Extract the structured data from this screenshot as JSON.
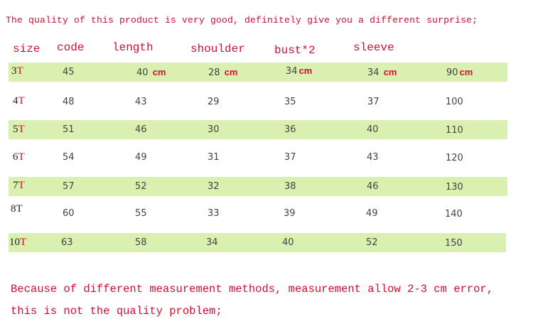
{
  "top_note": "The quality of this product is very good, definitely give you a different surprise;",
  "headers": {
    "size": "size",
    "code": "code",
    "length": "length",
    "shoulder": "shoulder",
    "bust": "bust*2",
    "sleeve": "sleeve"
  },
  "unit_label": "cm",
  "rows": [
    {
      "size_num": "3",
      "size_t": "T",
      "code": "45",
      "length": "40",
      "shoulder": "28",
      "bust": "34",
      "sleeve": "34",
      "height": "90"
    },
    {
      "size_num": "4",
      "size_t": "T",
      "code": "48",
      "length": "43",
      "shoulder": "29",
      "bust": "35",
      "sleeve": "37",
      "height": "100"
    },
    {
      "size_num": "5",
      "size_t": "T",
      "code": "51",
      "length": "46",
      "shoulder": "30",
      "bust": "36",
      "sleeve": "40",
      "height": "110"
    },
    {
      "size_num": "6",
      "size_t": "T",
      "code": "54",
      "length": "49",
      "shoulder": "31",
      "bust": "37",
      "sleeve": "43",
      "height": "120"
    },
    {
      "size_num": "7",
      "size_t": "T",
      "code": "57",
      "length": "52",
      "shoulder": "32",
      "bust": "38",
      "sleeve": "46",
      "height": "130"
    },
    {
      "size_num": "8",
      "size_t": "T",
      "code": "60",
      "length": "55",
      "shoulder": "33",
      "bust": "39",
      "sleeve": "49",
      "height": "140"
    },
    {
      "size_num": "10",
      "size_t": "T",
      "code": "63",
      "length": "58",
      "shoulder": "34",
      "bust": "40",
      "sleeve": "52",
      "height": "150"
    }
  ],
  "bottom_note_line1": "Because of different measurement methods, measurement allow 2-3 cm error,",
  "bottom_note_line2": "this is not the quality problem;",
  "colors": {
    "accent_red": "#d01030",
    "band_green": "#d9f0b0",
    "text_gray": "#444444"
  }
}
